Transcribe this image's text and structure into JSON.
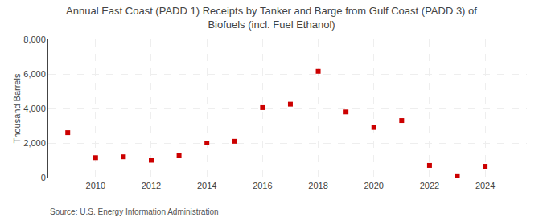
{
  "chart_data": {
    "type": "scatter",
    "title": "Annual East Coast (PADD 1) Receipts by Tanker and Barge from Gulf Coast (PADD 3) of\nBiofuels (incl. Fuel Ethanol)",
    "ylabel": "Thousand Barrels",
    "annotations": [
      "Source: U.S. Energy Information Administration"
    ],
    "x": [
      2009,
      2010,
      2011,
      2012,
      2013,
      2014,
      2015,
      2016,
      2017,
      2018,
      2019,
      2020,
      2021,
      2022,
      2023,
      2024
    ],
    "values": [
      2600,
      1150,
      1200,
      1000,
      1300,
      2000,
      2100,
      4050,
      4250,
      6150,
      3800,
      2900,
      3300,
      700,
      100,
      650
    ],
    "color": "#cc0000",
    "marker": "square",
    "xlim": [
      2008.3,
      2025.5
    ],
    "xticks": [
      2010,
      2012,
      2014,
      2016,
      2018,
      2020,
      2022,
      2024
    ],
    "ylim": [
      0,
      8000
    ],
    "yticks": [
      0,
      {
        "value": 2000,
        "label": "2,000"
      },
      {
        "value": 4000,
        "label": "4,000"
      },
      {
        "value": 6000,
        "label": "6,000"
      },
      {
        "value": 8000,
        "label": "8,000"
      }
    ],
    "grid": true
  }
}
